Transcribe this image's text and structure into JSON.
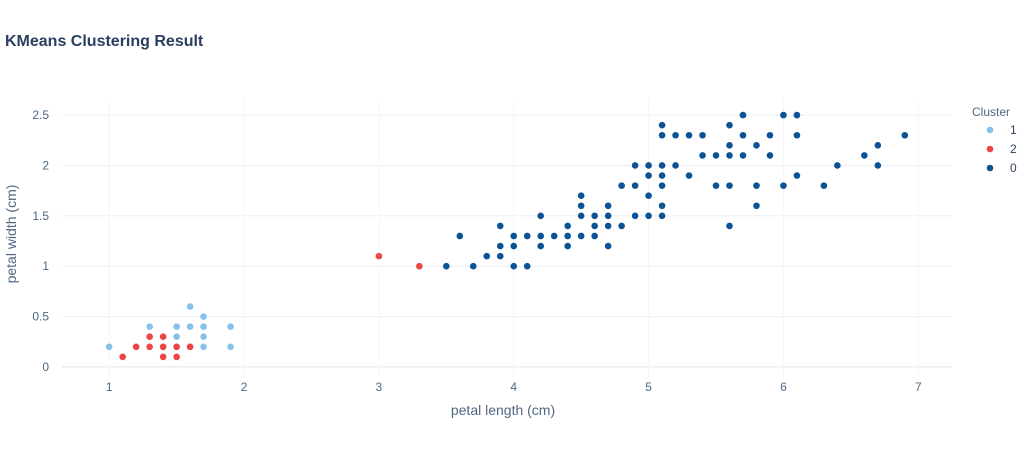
{
  "chart_data": {
    "type": "scatter",
    "title": "KMeans Clustering Result",
    "xlabel": "petal length (cm)",
    "ylabel": "petal width (cm)",
    "xlim": [
      0.65,
      7.25
    ],
    "ylim": [
      -0.1,
      2.65
    ],
    "xticks": [
      1,
      2,
      3,
      4,
      5,
      6,
      7
    ],
    "yticks": [
      0,
      0.5,
      1,
      1.5,
      2,
      2.5
    ],
    "grid": true,
    "legend": {
      "title": "Cluster",
      "placement": "right"
    },
    "series": [
      {
        "name": "1",
        "color": "#85c1e9",
        "points": [
          [
            1.0,
            0.2
          ],
          [
            1.3,
            0.4
          ],
          [
            1.4,
            0.2
          ],
          [
            1.5,
            0.2
          ],
          [
            1.5,
            0.3
          ],
          [
            1.5,
            0.4
          ],
          [
            1.6,
            0.2
          ],
          [
            1.6,
            0.4
          ],
          [
            1.6,
            0.6
          ],
          [
            1.7,
            0.2
          ],
          [
            1.7,
            0.3
          ],
          [
            1.7,
            0.4
          ],
          [
            1.7,
            0.5
          ],
          [
            1.9,
            0.2
          ],
          [
            1.9,
            0.4
          ]
        ]
      },
      {
        "name": "2",
        "color": "#ef4444",
        "points": [
          [
            1.1,
            0.1
          ],
          [
            1.2,
            0.2
          ],
          [
            1.3,
            0.2
          ],
          [
            1.3,
            0.3
          ],
          [
            1.4,
            0.1
          ],
          [
            1.4,
            0.2
          ],
          [
            1.4,
            0.3
          ],
          [
            1.5,
            0.1
          ],
          [
            1.5,
            0.2
          ],
          [
            1.6,
            0.2
          ],
          [
            3.0,
            1.1
          ],
          [
            3.3,
            1.0
          ]
        ]
      },
      {
        "name": "0",
        "color": "#0b5394",
        "points": [
          [
            3.5,
            1.0
          ],
          [
            3.6,
            1.3
          ],
          [
            3.7,
            1.0
          ],
          [
            3.8,
            1.1
          ],
          [
            3.9,
            1.1
          ],
          [
            3.9,
            1.2
          ],
          [
            3.9,
            1.4
          ],
          [
            4.0,
            1.0
          ],
          [
            4.0,
            1.2
          ],
          [
            4.0,
            1.3
          ],
          [
            4.1,
            1.0
          ],
          [
            4.1,
            1.3
          ],
          [
            4.2,
            1.2
          ],
          [
            4.2,
            1.3
          ],
          [
            4.2,
            1.5
          ],
          [
            4.3,
            1.3
          ],
          [
            4.4,
            1.2
          ],
          [
            4.4,
            1.3
          ],
          [
            4.4,
            1.4
          ],
          [
            4.5,
            1.3
          ],
          [
            4.5,
            1.5
          ],
          [
            4.5,
            1.6
          ],
          [
            4.5,
            1.7
          ],
          [
            4.6,
            1.3
          ],
          [
            4.6,
            1.4
          ],
          [
            4.6,
            1.5
          ],
          [
            4.7,
            1.2
          ],
          [
            4.7,
            1.4
          ],
          [
            4.7,
            1.5
          ],
          [
            4.7,
            1.6
          ],
          [
            4.8,
            1.4
          ],
          [
            4.8,
            1.8
          ],
          [
            4.9,
            1.5
          ],
          [
            4.9,
            1.8
          ],
          [
            4.9,
            2.0
          ],
          [
            5.0,
            1.5
          ],
          [
            5.0,
            1.7
          ],
          [
            5.0,
            1.9
          ],
          [
            5.0,
            2.0
          ],
          [
            5.1,
            1.5
          ],
          [
            5.1,
            1.6
          ],
          [
            5.1,
            1.8
          ],
          [
            5.1,
            1.9
          ],
          [
            5.1,
            2.0
          ],
          [
            5.1,
            2.3
          ],
          [
            5.1,
            2.4
          ],
          [
            5.2,
            2.0
          ],
          [
            5.2,
            2.3
          ],
          [
            5.3,
            1.9
          ],
          [
            5.3,
            2.3
          ],
          [
            5.4,
            2.1
          ],
          [
            5.4,
            2.3
          ],
          [
            5.5,
            1.8
          ],
          [
            5.5,
            2.1
          ],
          [
            5.6,
            1.4
          ],
          [
            5.6,
            1.8
          ],
          [
            5.6,
            2.1
          ],
          [
            5.6,
            2.2
          ],
          [
            5.6,
            2.4
          ],
          [
            5.7,
            2.1
          ],
          [
            5.7,
            2.3
          ],
          [
            5.7,
            2.5
          ],
          [
            5.8,
            1.6
          ],
          [
            5.8,
            1.8
          ],
          [
            5.8,
            2.2
          ],
          [
            5.9,
            2.1
          ],
          [
            5.9,
            2.3
          ],
          [
            6.0,
            1.8
          ],
          [
            6.0,
            2.5
          ],
          [
            6.1,
            1.9
          ],
          [
            6.1,
            2.3
          ],
          [
            6.1,
            2.5
          ],
          [
            6.3,
            1.8
          ],
          [
            6.4,
            2.0
          ],
          [
            6.6,
            2.1
          ],
          [
            6.7,
            2.0
          ],
          [
            6.7,
            2.2
          ],
          [
            6.9,
            2.3
          ]
        ]
      }
    ]
  }
}
